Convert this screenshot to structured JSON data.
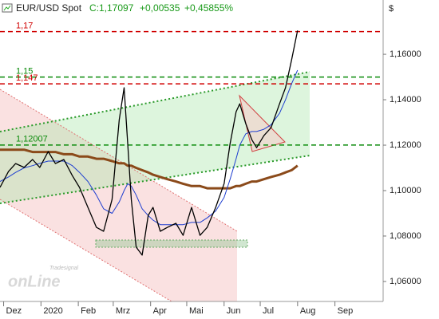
{
  "chart_data": {
    "type": "line",
    "title": "EUR/USD Spot",
    "close": "C:1,17097",
    "change": "+0,00535",
    "change_pct": "+0,45855%",
    "currency": "$",
    "logo_top": "Tradesignal",
    "logo": "onLine",
    "xlim": [
      -3,
      315
    ],
    "ylim": [
      1.0512,
      1.1839
    ],
    "xticks": [
      {
        "value": 0,
        "label": "Dez"
      },
      {
        "value": 31,
        "label": "2020"
      },
      {
        "value": 62,
        "label": "Feb"
      },
      {
        "value": 91,
        "label": "Mrz"
      },
      {
        "value": 122,
        "label": "Apr"
      },
      {
        "value": 152,
        "label": "Mai"
      },
      {
        "value": 183,
        "label": "Jun"
      },
      {
        "value": 213,
        "label": "Jul"
      },
      {
        "value": 244,
        "label": "Aug"
      },
      {
        "value": 275,
        "label": "Sep"
      }
    ],
    "yticks": [
      {
        "value": 1.06,
        "label": "1,06000"
      },
      {
        "value": 1.08,
        "label": "1,08000"
      },
      {
        "value": 1.1,
        "label": "1,10000"
      },
      {
        "value": 1.12,
        "label": "1,12000"
      },
      {
        "value": 1.14,
        "label": "1,14000"
      },
      {
        "value": 1.16,
        "label": "1,16000"
      }
    ],
    "levels": [
      {
        "value": 1.17,
        "label": "1,17",
        "color": "#d00000"
      },
      {
        "value": 1.15,
        "label": "1,15",
        "color": "#0a8a0a"
      },
      {
        "value": 1.147,
        "label": "1,147",
        "color": "#d00000"
      },
      {
        "value": 1.12007,
        "label": "1,12007",
        "color": "#0a8a0a"
      }
    ],
    "x": [
      -3,
      4,
      10,
      17,
      24,
      30,
      37,
      43,
      50,
      57,
      63,
      70,
      77,
      83,
      90,
      96,
      100,
      103,
      106,
      110,
      115,
      120,
      124,
      130,
      136,
      143,
      149,
      156,
      163,
      169,
      176,
      183,
      188,
      193,
      196,
      201,
      206,
      210,
      216,
      222,
      229,
      234,
      239,
      244
    ],
    "series": [
      {
        "color": "#8b4a1a",
        "values": [
          1.118,
          1.118,
          1.118,
          1.118,
          1.117,
          1.117,
          1.117,
          1.117,
          1.116,
          1.116,
          1.115,
          1.115,
          1.114,
          1.114,
          1.113,
          1.112,
          1.112,
          1.111,
          1.111,
          1.11,
          1.109,
          1.108,
          1.107,
          1.106,
          1.105,
          1.104,
          1.103,
          1.102,
          1.102,
          1.101,
          1.101,
          1.101,
          1.101,
          1.102,
          1.102,
          1.103,
          1.104,
          1.104,
          1.105,
          1.106,
          1.107,
          1.108,
          1.109,
          1.111
        ]
      },
      {
        "color": "#1f3fd0",
        "values": [
          1.104,
          1.106,
          1.108,
          1.11,
          1.111,
          1.112,
          1.113,
          1.113,
          1.113,
          1.111,
          1.108,
          1.104,
          1.098,
          1.092,
          1.09,
          1.095,
          1.1,
          1.103,
          1.102,
          1.098,
          1.092,
          1.089,
          1.087,
          1.085,
          1.085,
          1.085,
          1.085,
          1.086,
          1.086,
          1.088,
          1.091,
          1.097,
          1.105,
          1.114,
          1.12,
          1.125,
          1.126,
          1.126,
          1.127,
          1.129,
          1.134,
          1.14,
          1.147,
          1.153
        ]
      },
      {
        "color": "#000000",
        "values": [
          1.1014,
          1.1084,
          1.1119,
          1.1102,
          1.1137,
          1.1102,
          1.1172,
          1.1119,
          1.1137,
          1.1066,
          1.1014,
          1.0926,
          1.0838,
          1.0821,
          1.0961,
          1.1312,
          1.1453,
          1.1207,
          1.0961,
          1.0751,
          1.0716,
          1.0891,
          1.0926,
          1.0821,
          1.0838,
          1.0856,
          1.0803,
          1.0926,
          1.0803,
          1.0838,
          1.0926,
          1.1031,
          1.1207,
          1.1347,
          1.1382,
          1.1295,
          1.1224,
          1.1189,
          1.1242,
          1.1277,
          1.1382,
          1.1453,
          1.1575,
          1.1705
        ]
      }
    ]
  }
}
